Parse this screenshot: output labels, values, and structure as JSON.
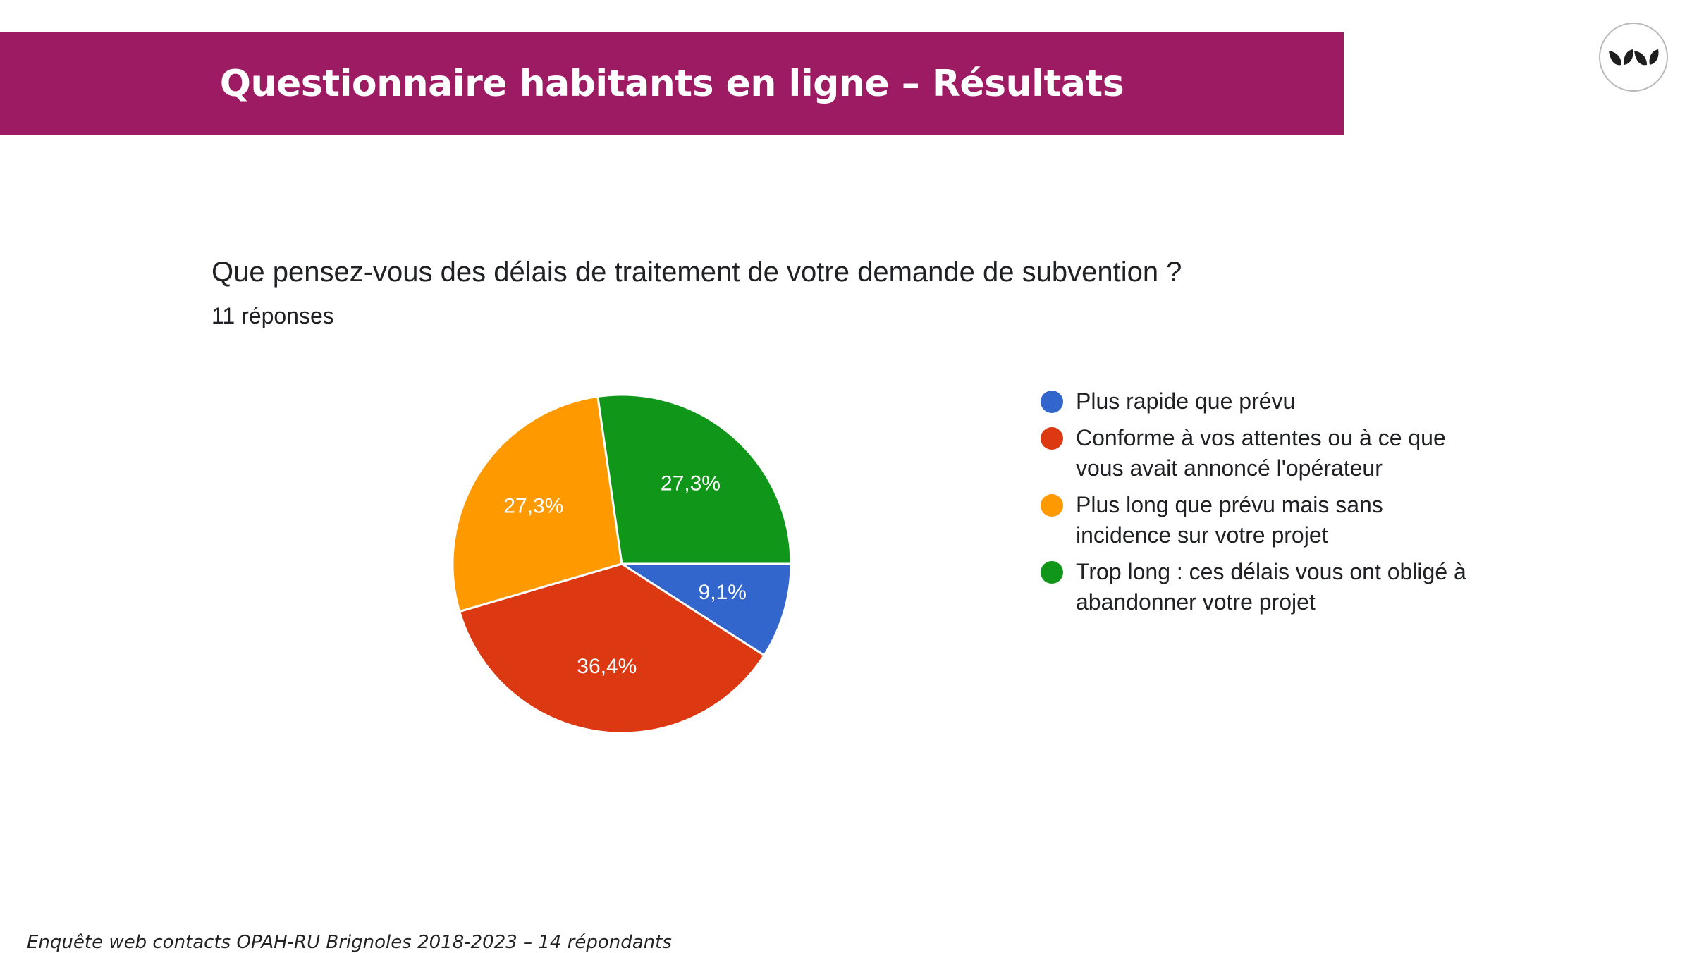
{
  "header": {
    "title": "Questionnaire habitants en ligne – Résultats"
  },
  "logo": {
    "icon": "leaves-logo-icon",
    "color": "#1e1e1e"
  },
  "question": {
    "text": "Que pensez-vous des délais de traitement de votre demande de subvention ?",
    "responses": "11 réponses"
  },
  "chart_data": {
    "type": "pie",
    "categories": [
      "Plus rapide que prévu",
      "Conforme à vos attentes ou à ce que\nvous avait annoncé l'opérateur",
      "Plus long que prévu mais sans\nincidence sur votre projet",
      "Trop long : ces délais vous ont obligé à\nabandonner votre projet"
    ],
    "values": [
      9.1,
      36.4,
      27.3,
      27.3
    ],
    "labels": [
      "9,1%",
      "36,4%",
      "27,3%",
      "27,3%"
    ],
    "colors": [
      "#3366cc",
      "#dc3912",
      "#ff9900",
      "#109618"
    ],
    "legend_position": "right"
  },
  "footer": {
    "note": "Enquête web contacts OPAH-RU Brignoles 2018-2023 – 14 répondants"
  }
}
